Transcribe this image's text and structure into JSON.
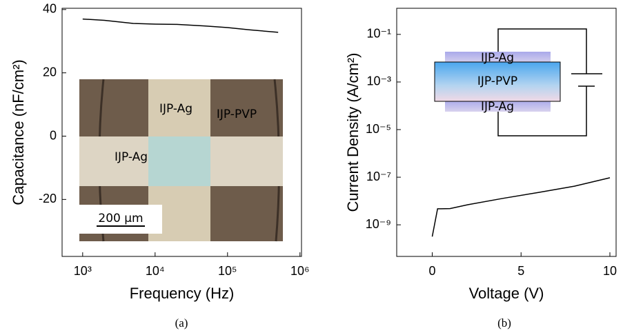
{
  "chart_data": [
    {
      "type": "line",
      "xscale": "log",
      "yscale": "linear",
      "x": [
        1000,
        2000,
        5000,
        10000,
        20000,
        50000,
        100000,
        200000,
        500000
      ],
      "values": [
        37,
        36.6,
        35.6,
        35.4,
        35.3,
        34.8,
        34.3,
        33.6,
        32.8
      ],
      "color": "#000000",
      "xlim": [
        520,
        1050000
      ],
      "xticks": [
        {
          "value": 1000,
          "label": "10³"
        },
        {
          "value": 10000,
          "label": "10⁴"
        },
        {
          "value": 100000,
          "label": "10⁵"
        },
        {
          "value": 1000000,
          "label": "10⁶"
        }
      ],
      "ylim": [
        -38,
        40.4
      ],
      "yticks": [
        -20,
        0,
        20,
        40
      ],
      "xlabel": "Frequency (Hz)",
      "ylabel": "Capacitance (nF/cm²)",
      "annotations": [
        "IJP-Ag",
        "IJP-PVP",
        "IJP-Ag",
        "200 µm"
      ],
      "caption": "(a)"
    },
    {
      "type": "line",
      "xscale": "linear",
      "yscale": "log",
      "x": [
        0,
        0.3,
        0.5,
        1,
        2,
        4,
        6,
        8,
        10
      ],
      "values": [
        3.2e-10,
        4.7e-09,
        4.7e-09,
        4.8e-09,
        7e-09,
        1.3e-08,
        2.3e-08,
        4.2e-08,
        9.5e-08
      ],
      "color": "#000000",
      "xlim": [
        -2,
        10.35
      ],
      "xticks": [
        0,
        5,
        10
      ],
      "ylim": [
        4.7e-11,
        1.25
      ],
      "yticks": [
        {
          "value": 1e-09,
          "label": "10⁻⁹"
        },
        {
          "value": 1e-07,
          "label": "10⁻⁷"
        },
        {
          "value": 1e-05,
          "label": "10⁻⁵"
        },
        {
          "value": 0.001,
          "label": "10⁻³"
        },
        {
          "value": 0.1,
          "label": "10⁻¹"
        }
      ],
      "xlabel": "Voltage (V)",
      "ylabel": "Current Density (A/cm²)",
      "annotations": [
        "IJP-Ag",
        "IJP-PVP",
        "IJP-Ag"
      ],
      "caption": "(b)"
    }
  ]
}
